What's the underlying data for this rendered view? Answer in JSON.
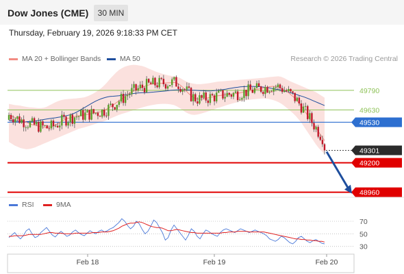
{
  "header": {
    "title": "Dow Jones (CME)",
    "timeframe": "30 MIN"
  },
  "datetime": "Thursday, February 19, 2026 9:18:33 PM CET",
  "legend": {
    "ma20_label": "MA 20 + Bollinger Bands",
    "ma20_color": "#f28b82",
    "ma50_label": "MA 50",
    "ma50_color": "#1e4e9d"
  },
  "copyright": "Research © 2026 Trading Central",
  "rsi_legend": {
    "rsi_label": "RSI",
    "rsi_color": "#4a78d8",
    "ma9_label": "9MA",
    "ma9_color": "#e02020"
  },
  "colors": {
    "bull": "#5a9f2b",
    "bear": "#c0182a",
    "band": "#fadcd8",
    "resistance": "#8fc259",
    "pivot": "#2d6fd0",
    "support": "#e00000",
    "last": "#2b2b2b"
  },
  "chart_data": [
    {
      "type": "candlestick",
      "y_range": [
        48930,
        49990
      ],
      "x_ticks": [
        "Feb 18",
        "Feb 19",
        "Feb 20"
      ],
      "price_levels": [
        {
          "label": "49790",
          "value": 49790,
          "kind": "resistance"
        },
        {
          "label": "49630",
          "value": 49630,
          "kind": "resistance"
        },
        {
          "label": "49530",
          "value": 49530,
          "kind": "pivot"
        },
        {
          "label": "49301",
          "value": 49301,
          "kind": "last"
        },
        {
          "label": "49200",
          "value": 49200,
          "kind": "support"
        },
        {
          "label": "48960",
          "value": 48960,
          "kind": "support"
        }
      ],
      "forecast": {
        "from": 49301,
        "to": 48960
      },
      "series": [
        {
          "name": "MA 50",
          "values": [
            49545,
            49542,
            49540,
            49538,
            49537,
            49536,
            49535,
            49536,
            49537,
            49540,
            49544,
            49548,
            49552,
            49556,
            49560,
            49563,
            49566,
            49570,
            49574,
            49578,
            49584,
            49590,
            49598,
            49608,
            49620,
            49634,
            49648,
            49662,
            49676,
            49690,
            49702,
            49713,
            49722,
            49730,
            49736,
            49740,
            49742,
            49744,
            49746,
            49749,
            49752,
            49756,
            49760,
            49764,
            49767,
            49769,
            49770,
            49771,
            49772,
            49774,
            49776,
            49778,
            49780,
            49782,
            49784,
            49787,
            49790,
            49792,
            49793,
            49794,
            49794,
            49793,
            49792,
            49791,
            49790,
            49789,
            49788,
            49787,
            49786,
            49785,
            49786,
            49788,
            49790,
            49793,
            49796,
            49800,
            49804,
            49808,
            49812,
            49815,
            49818,
            49820,
            49821,
            49822,
            49822,
            49821,
            49820,
            49818,
            49816,
            49813,
            49809,
            49804,
            49800,
            49796,
            49791,
            49785,
            49779,
            49772,
            49765,
            49758,
            49750,
            49743,
            49735,
            49726,
            49716,
            49706,
            49696,
            49686,
            49676,
            49666
          ]
        },
        {
          "name": "MA 20",
          "values": [
            49590,
            49580,
            49570,
            49560,
            49550,
            49540,
            49530,
            49520,
            49510,
            49505,
            49500,
            49495,
            49490,
            49485,
            49490,
            49495,
            49505,
            49520,
            49535,
            49548,
            49558,
            49565,
            49572,
            49578,
            49582,
            49586,
            49590,
            49594,
            49598,
            49603,
            49608,
            49612,
            49618,
            49628,
            49640,
            49655,
            49670,
            49688,
            49705,
            49720,
            49738,
            49756,
            49772,
            49785,
            49796,
            49805,
            49815,
            49825,
            49832,
            49838,
            49842,
            49844,
            49846,
            49848,
            49850,
            49851,
            49852,
            49854,
            49850,
            49835,
            49815,
            49790,
            49765,
            49745,
            49728,
            49720,
            49718,
            49720,
            49725,
            49730,
            49735,
            49740,
            49745,
            49748,
            49752,
            49755,
            49758,
            49760,
            49762,
            49765,
            49770,
            49775,
            49780,
            49785,
            49790,
            49795,
            49800,
            49805,
            49810,
            49815,
            49820,
            49822,
            49822,
            49818,
            49808,
            49795,
            49780,
            49762,
            49742,
            49720,
            49690,
            49660,
            49625,
            49590,
            49555,
            49520,
            49485,
            49450,
            49415,
            49380
          ]
        },
        {
          "name": "Bollinger upper",
          "values": [
            49680,
            49675,
            49670,
            49668,
            49665,
            49660,
            49655,
            49652,
            49650,
            49648,
            49645,
            49645,
            49648,
            49655,
            49668,
            49680,
            49692,
            49702,
            49710,
            49715,
            49718,
            49720,
            49722,
            49724,
            49726,
            49729,
            49733,
            49740,
            49750,
            49762,
            49776,
            49792,
            49810,
            49832,
            49858,
            49885,
            49910,
            49935,
            49955,
            49970,
            49982,
            49990,
            49995,
            49998,
            49996,
            49992,
            49988,
            49980,
            49970,
            49960,
            49950,
            49940,
            49932,
            49925,
            49918,
            49912,
            49908,
            49905,
            49900,
            49892,
            49878,
            49865,
            49855,
            49848,
            49843,
            49840,
            49840,
            49842,
            49845,
            49848,
            49852,
            49856,
            49860,
            49862,
            49864,
            49866,
            49868,
            49870,
            49872,
            49874,
            49876,
            49878,
            49880,
            49882,
            49884,
            49886,
            49888,
            49890,
            49892,
            49895,
            49898,
            49900,
            49902,
            49904,
            49900,
            49890,
            49878,
            49865,
            49855,
            49845,
            49835,
            49825,
            49815,
            49805,
            49795,
            49785,
            49775,
            49760,
            49745,
            49730
          ]
        },
        {
          "name": "Bollinger lower",
          "values": [
            49370,
            49355,
            49340,
            49330,
            49320,
            49315,
            49310,
            49312,
            49318,
            49325,
            49335,
            49345,
            49355,
            49365,
            49375,
            49385,
            49395,
            49405,
            49415,
            49425,
            49435,
            49445,
            49455,
            49465,
            49475,
            49482,
            49488,
            49495,
            49502,
            49510,
            49518,
            49525,
            49532,
            49540,
            49550,
            49560,
            49570,
            49580,
            49590,
            49598,
            49605,
            49612,
            49620,
            49628,
            49636,
            49643,
            49650,
            49657,
            49663,
            49668,
            49672,
            49676,
            49678,
            49680,
            49680,
            49678,
            49675,
            49670,
            49660,
            49645,
            49628,
            49612,
            49600,
            49592,
            49590,
            49592,
            49598,
            49605,
            49612,
            49620,
            49628,
            49636,
            49645,
            49652,
            49660,
            49668,
            49675,
            49682,
            49688,
            49694,
            49700,
            49705,
            49710,
            49713,
            49716,
            49718,
            49720,
            49722,
            49724,
            49722,
            49718,
            49712,
            49705,
            49695,
            49682,
            49665,
            49645,
            49625,
            49605,
            49582,
            49555,
            49525,
            49490,
            49455,
            49420,
            49385,
            49350,
            49320,
            49295,
            49270
          ]
        }
      ]
    },
    {
      "type": "line",
      "title": "RSI",
      "y_ticks": [
        70,
        50,
        30
      ],
      "y_range": [
        22,
        82
      ],
      "series": [
        {
          "name": "RSI",
          "values": [
            44,
            48,
            52,
            46,
            42,
            47,
            55,
            58,
            50,
            44,
            46,
            52,
            56,
            60,
            54,
            48,
            45,
            50,
            54,
            50,
            46,
            48,
            53,
            56,
            52,
            49,
            47,
            51,
            55,
            52,
            50,
            54,
            56,
            53,
            55,
            58,
            60,
            64,
            68,
            74,
            70,
            63,
            58,
            62,
            70,
            66,
            57,
            50,
            54,
            62,
            72,
            68,
            60,
            52,
            40,
            44,
            56,
            64,
            58,
            52,
            46,
            40,
            48,
            58,
            54,
            46,
            42,
            50,
            56,
            54,
            50,
            48,
            46,
            52,
            56,
            58,
            56,
            54,
            52,
            55,
            58,
            56,
            54,
            52,
            54,
            56,
            54,
            52,
            50,
            47,
            42,
            40,
            38,
            41,
            46,
            44,
            40,
            36,
            34,
            38,
            44,
            46,
            42,
            38,
            36,
            39,
            41,
            38,
            35,
            34
          ]
        },
        {
          "name": "9MA",
          "values": [
            46,
            46,
            47,
            47,
            47,
            47,
            48,
            49,
            49,
            49,
            49,
            49,
            50,
            51,
            52,
            52,
            51,
            51,
            51,
            50,
            50,
            50,
            50,
            51,
            51,
            51,
            51,
            51,
            51,
            52,
            52,
            52,
            53,
            53,
            53,
            54,
            55,
            57,
            59,
            62,
            64,
            66,
            67,
            67,
            68,
            69,
            68,
            66,
            64,
            62,
            61,
            60,
            60,
            59,
            57,
            55,
            55,
            56,
            57,
            56,
            55,
            54,
            53,
            52,
            52,
            51,
            51,
            51,
            51,
            51,
            51,
            51,
            51,
            51,
            52,
            52,
            53,
            53,
            53,
            54,
            54,
            54,
            54,
            53,
            53,
            53,
            53,
            53,
            53,
            52,
            51,
            50,
            49,
            48,
            47,
            46,
            45,
            44,
            43,
            42,
            42,
            41,
            41,
            40,
            40,
            39,
            39,
            38,
            38,
            37
          ]
        }
      ]
    }
  ]
}
